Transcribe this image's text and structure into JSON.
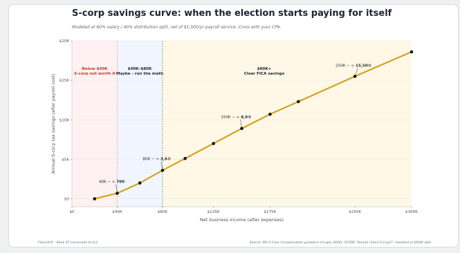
{
  "title": "S-corp savings curve: when the election starts paying for itself",
  "subtitle": "Modeled at 60% salary / 40% distribution split, net of $1,500/yr payroll service. Cross with your CPA.",
  "footer": {
    "left": "FlexLife®  ·  Book 07 Lemonade to LLC",
    "right": "Source: IRS S-Corp Compensation guidance (irs.gov 2026); SCORE 'Should I Elect S-Corp?'; modeled at 60/40 split"
  },
  "colors": {
    "line": "#d4a21f",
    "point": "#111111",
    "zone_red": "#fdf1f1",
    "zone_blue": "#f0f5ff",
    "zone_gold": "#fff8e6",
    "red_label": "#c0392b",
    "vline_red": "#e5a0a0",
    "vline_green": "#5a9a5a"
  },
  "chart_data": {
    "type": "line",
    "title": "S-corp savings curve: when the election starts paying for itself",
    "xlabel": "Net business income (after expenses)",
    "ylabel": "Annual S-corp tax savings (after payroll cost)",
    "xlim": [
      0,
      300000
    ],
    "ylim": [
      -1000,
      20000
    ],
    "x_ticks": [
      0,
      40000,
      80000,
      125000,
      175000,
      250000,
      300000
    ],
    "x_tick_labels": [
      "$0",
      "$40K",
      "$80K",
      "$125K",
      "$175K",
      "$250K",
      "$300K"
    ],
    "y_ticks": [
      0,
      5000,
      10000,
      15000,
      20000
    ],
    "y_tick_labels": [
      "$0",
      "$5K",
      "$10K",
      "$15K",
      "$20K"
    ],
    "grid": true,
    "series": [
      {
        "x": [
          20000,
          40000,
          60000,
          80000,
          100000,
          125000,
          150000,
          175000,
          200000,
          250000,
          300000
        ],
        "y": [
          0,
          700,
          2000,
          3600,
          5100,
          7000,
          8900,
          10700,
          12300,
          15500,
          18600
        ]
      }
    ],
    "zones": [
      {
        "x_start": 0,
        "x_end": 40000,
        "label_line1": "Below $40K",
        "label_line2": "S-corp not worth it"
      },
      {
        "x_start": 40000,
        "x_end": 80000,
        "label_line1": "$40K–$80K",
        "label_line2": "Maybe - run the math"
      },
      {
        "x_start": 80000,
        "x_end": 300000,
        "label_line1": "$80K+",
        "label_line2": "Clear FICA savings"
      }
    ],
    "annotations": [
      {
        "x": 40000,
        "y": 700,
        "text_prefix": "40K − > ",
        "text_bold": "700"
      },
      {
        "x": 80000,
        "y": 3600,
        "text_prefix": "80K − > ",
        "text_bold": "3,6©"
      },
      {
        "x": 150000,
        "y": 8900,
        "text_prefix": "150K − > ",
        "text_bold": "8,9©"
      },
      {
        "x": 250000,
        "y": 15500,
        "text_prefix": "250K − > ",
        "text_bold": "15,50©"
      }
    ]
  }
}
